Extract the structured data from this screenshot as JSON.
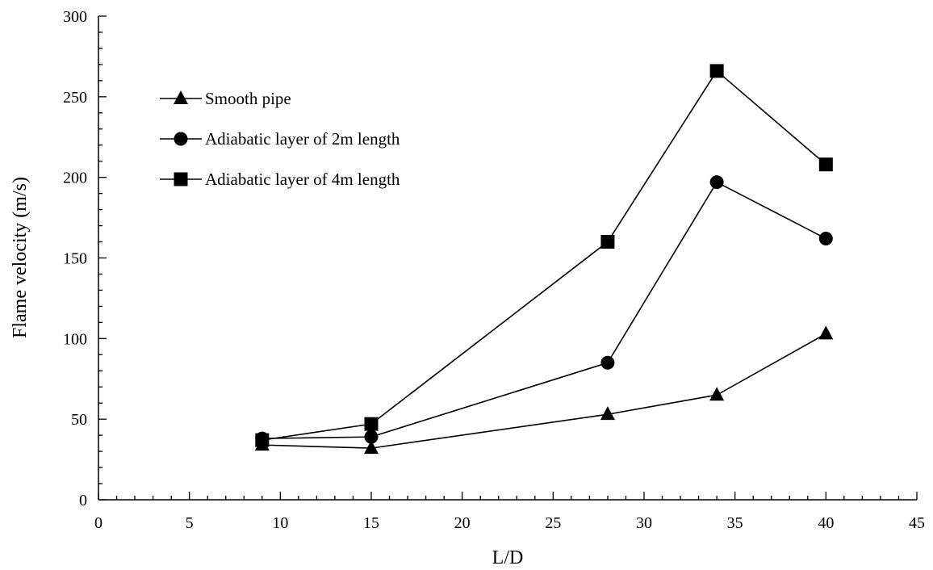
{
  "chart_data": {
    "type": "line",
    "title": "",
    "xlabel": "L/D",
    "ylabel": "Flame velocity (m/s)",
    "xlim": [
      0,
      45
    ],
    "ylim": [
      0,
      300
    ],
    "x_ticks": [
      0,
      5,
      10,
      15,
      20,
      25,
      30,
      35,
      40,
      45
    ],
    "y_ticks": [
      0,
      50,
      100,
      150,
      200,
      250,
      300
    ],
    "grid": false,
    "legend_position": "top-left",
    "series": [
      {
        "name": "Smooth pipe",
        "marker": "triangle",
        "color": "#000000",
        "x": [
          9,
          15,
          28,
          34,
          40
        ],
        "y": [
          34,
          32,
          53,
          65,
          103
        ]
      },
      {
        "name": "Adiabatic layer of 2m length",
        "marker": "circle",
        "color": "#000000",
        "x": [
          9,
          15,
          28,
          34,
          40
        ],
        "y": [
          38,
          39,
          85,
          197,
          162
        ]
      },
      {
        "name": "Adiabatic layer of 4m length",
        "marker": "square",
        "color": "#000000",
        "x": [
          9,
          15,
          28,
          34,
          40
        ],
        "y": [
          37,
          47,
          160,
          266,
          208
        ]
      }
    ]
  }
}
